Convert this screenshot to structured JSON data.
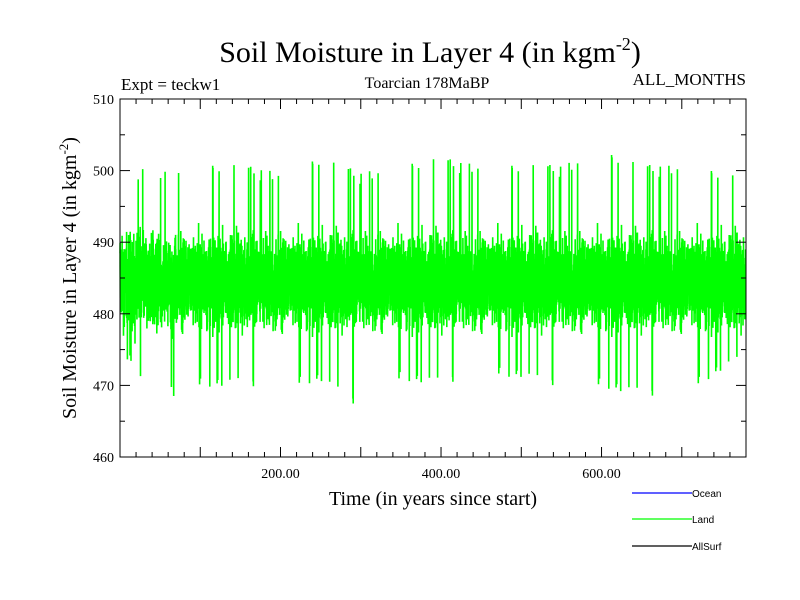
{
  "header": {
    "title_main": "Soil Moisture in Layer 4 (in kgm",
    "title_sup": "-2",
    "title_close": ")",
    "expt": "Expt = teckw1",
    "period": "Toarcian 178MaBP",
    "months": "ALL_MONTHS"
  },
  "colors": {
    "ocean": "#0000ff",
    "land": "#00ff00",
    "allsurf": "#000000",
    "axis": "#000000"
  },
  "chart_data": {
    "type": "line",
    "title": "Soil Moisture in Layer 4 (in kgm-2)",
    "xlabel": "Time (in years since start)",
    "ylabel": "Soil Moisture in Layer 4 (in kgm-2)",
    "ylabel_main": "Soil Moisture in Layer 4 (in kgm",
    "ylabel_sup": "-2",
    "ylabel_close": ")",
    "xlim": [
      0,
      780
    ],
    "ylim": [
      460,
      510
    ],
    "x_ticks": [
      200,
      400,
      600
    ],
    "x_tick_labels": [
      "200.00",
      "400.00",
      "600.00"
    ],
    "y_ticks": [
      460,
      470,
      480,
      490,
      500,
      510
    ],
    "y_tick_labels": [
      "460",
      "470",
      "480",
      "490",
      "500",
      "510"
    ],
    "series": [
      {
        "name": "Land",
        "color": "#00ff00",
        "n_points": 9360,
        "x_step": 0.0833,
        "mean": 484.5,
        "min": 466,
        "max": 503,
        "envelope_x": [
          0,
          50,
          100,
          150,
          200,
          250,
          300,
          350,
          400,
          450,
          500,
          550,
          600,
          650,
          700,
          750,
          780
        ],
        "envelope_max": [
          501,
          500,
          501,
          501,
          500,
          502,
          500,
          501,
          502,
          501,
          501,
          501,
          503,
          501,
          501,
          500,
          499
        ],
        "envelope_min": [
          475,
          467.5,
          469,
          469.5,
          468.5,
          470,
          466,
          470,
          469.5,
          470.5,
          470.5,
          469,
          469,
          468,
          467.5,
          471.5,
          473
        ]
      }
    ],
    "legend": [
      "Ocean",
      "Land",
      "AllSurf"
    ],
    "legend_position": "bottom-right"
  }
}
